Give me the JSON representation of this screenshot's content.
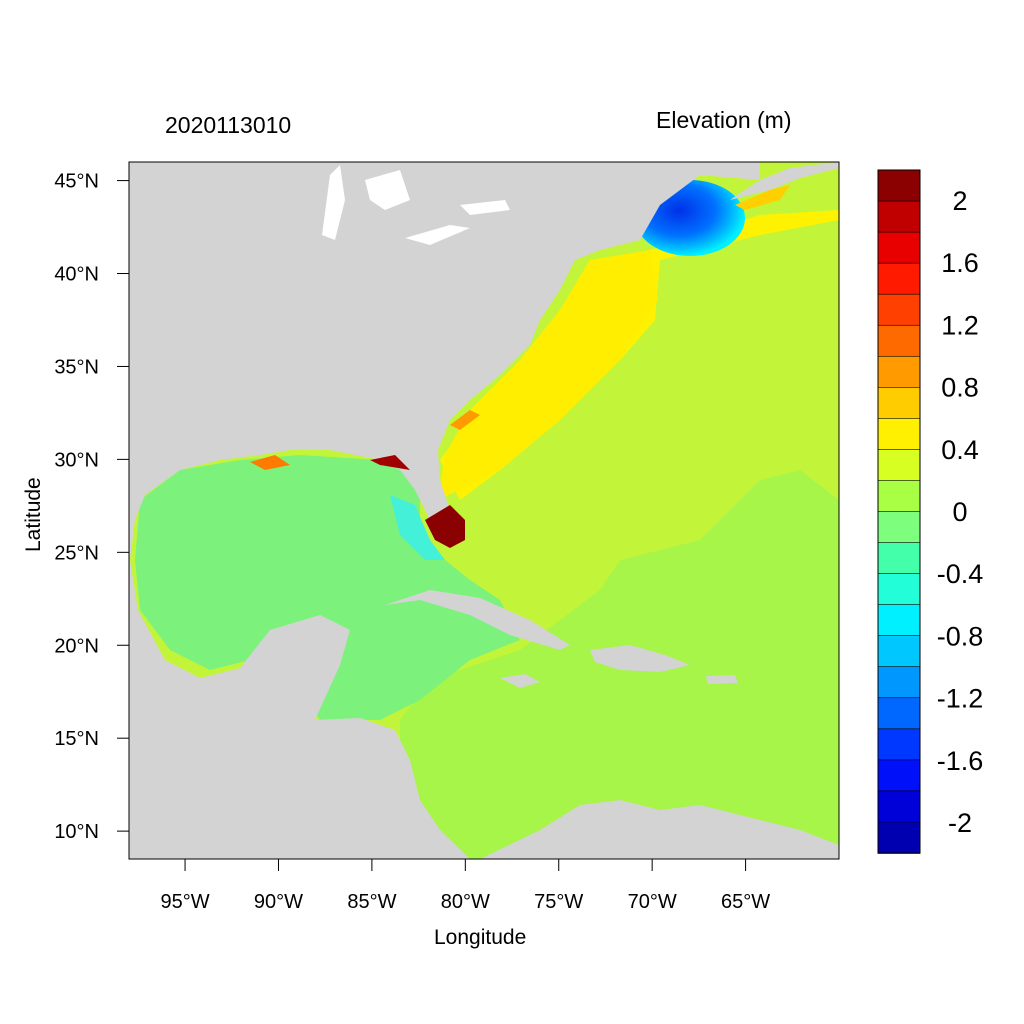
{
  "header": {
    "date_label": "2020113010",
    "field_title": "Elevation (m)"
  },
  "axes": {
    "x_title": "Longitude",
    "y_title": "Latitude",
    "lon_range": [
      -98,
      -60
    ],
    "lat_range": [
      8.5,
      46
    ],
    "x_ticks": [
      {
        "value": -95,
        "label": "95°W"
      },
      {
        "value": -90,
        "label": "90°W"
      },
      {
        "value": -85,
        "label": "85°W"
      },
      {
        "value": -80,
        "label": "80°W"
      },
      {
        "value": -75,
        "label": "75°W"
      },
      {
        "value": -70,
        "label": "70°W"
      },
      {
        "value": -65,
        "label": "65°W"
      }
    ],
    "y_ticks": [
      {
        "value": 45,
        "label": "45°N"
      },
      {
        "value": 40,
        "label": "40°N"
      },
      {
        "value": 35,
        "label": "35°N"
      },
      {
        "value": 30,
        "label": "30°N"
      },
      {
        "value": 25,
        "label": "25°N"
      },
      {
        "value": 20,
        "label": "20°N"
      },
      {
        "value": 15,
        "label": "15°N"
      },
      {
        "value": 10,
        "label": "10°N"
      }
    ]
  },
  "colorbar": {
    "labels": [
      "2",
      "1.6",
      "1.2",
      "0.8",
      "0.4",
      "0",
      "-0.4",
      "-0.8",
      "-1.2",
      "-1.6",
      "-2"
    ],
    "bins_top_to_bottom": [
      "#8b0000",
      "#c00000",
      "#e80000",
      "#ff1a00",
      "#ff4000",
      "#ff6a00",
      "#ff9a00",
      "#ffcc00",
      "#ffef00",
      "#d8ff22",
      "#a8ff44",
      "#7dff7d",
      "#44ffaa",
      "#22ffd8",
      "#00f0ff",
      "#00c8ff",
      "#0098ff",
      "#0068ff",
      "#0038ff",
      "#0010f8",
      "#0000d8",
      "#0000b0"
    ]
  },
  "colors": {
    "land": "#d3d3d3",
    "water_ocean": "#c2f53a",
    "gulf": "#7cf27c"
  }
}
